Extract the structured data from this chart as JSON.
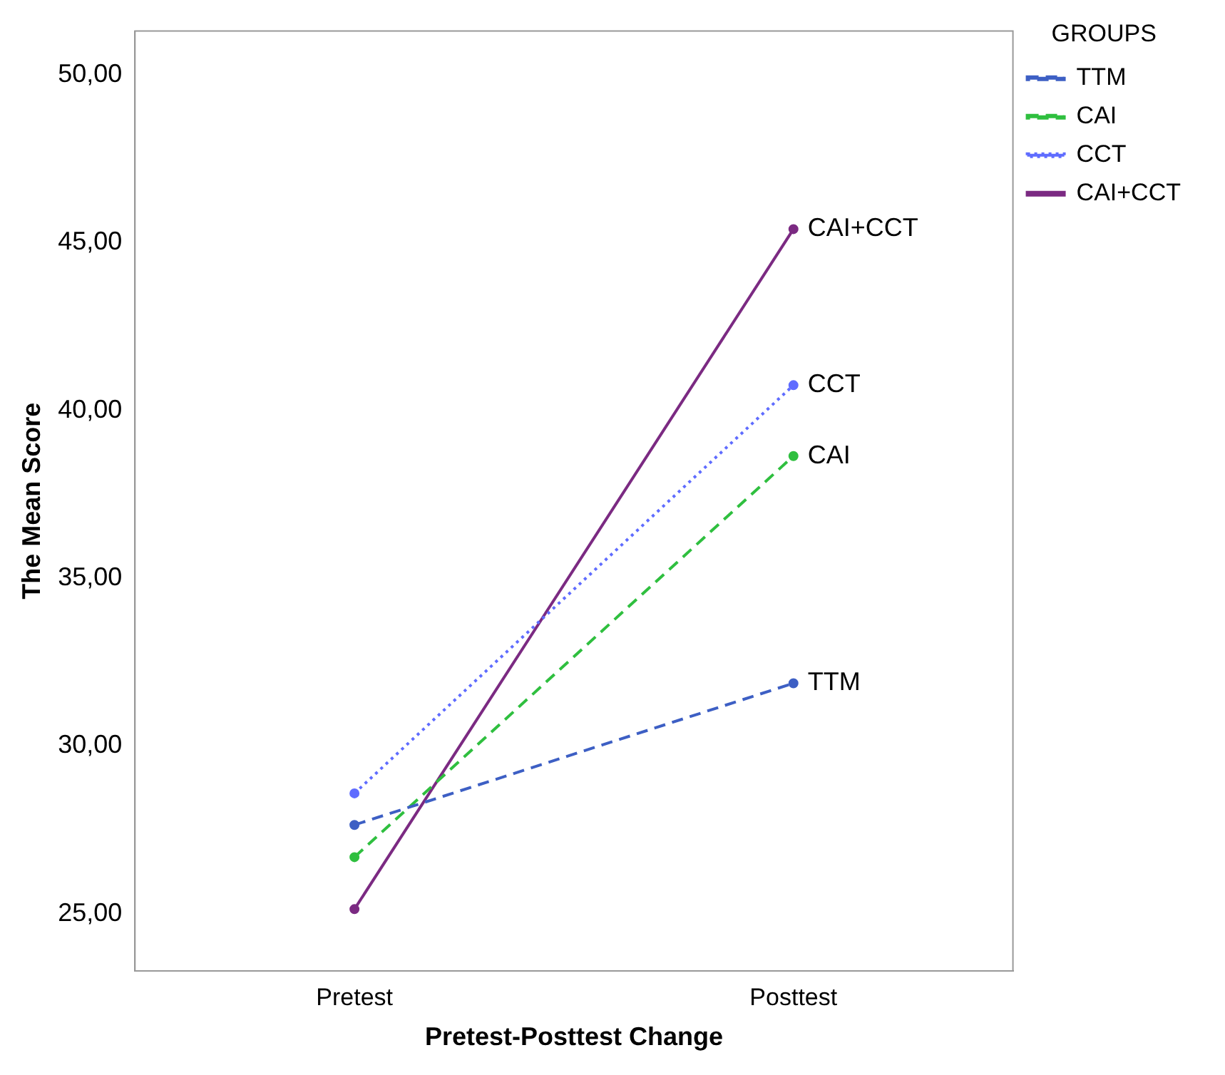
{
  "chart_data": {
    "type": "line",
    "xlabel": "Pretest-Posttest Change",
    "ylabel": "The Mean Score",
    "legend_title": "GROUPS",
    "legend": "top right",
    "grid": false,
    "marker": "circle",
    "categories": [
      "Pretest",
      "Posttest"
    ],
    "ylim": [
      23.3,
      51.3
    ],
    "yticks": [
      {
        "value": 25,
        "label": "25,00"
      },
      {
        "value": 30,
        "label": "30,00"
      },
      {
        "value": 35,
        "label": "35,00"
      },
      {
        "value": 40,
        "label": "40,00"
      },
      {
        "value": 45,
        "label": "45,00"
      },
      {
        "value": 50,
        "label": "50,00"
      }
    ],
    "series": [
      {
        "name": "TTM",
        "color": "#3d5fc4",
        "line_style": "dashed",
        "values": [
          27.65,
          31.87
        ]
      },
      {
        "name": "CAI",
        "color": "#2fbf3f",
        "line_style": "dashed",
        "values": [
          26.69,
          38.64
        ]
      },
      {
        "name": "CCT",
        "color": "#5f6cff",
        "line_style": "dotted",
        "values": [
          28.59,
          40.75
        ]
      },
      {
        "name": "CAI+CCT",
        "color": "#7b2a82",
        "line_style": "solid",
        "values": [
          25.14,
          45.4
        ]
      }
    ]
  }
}
